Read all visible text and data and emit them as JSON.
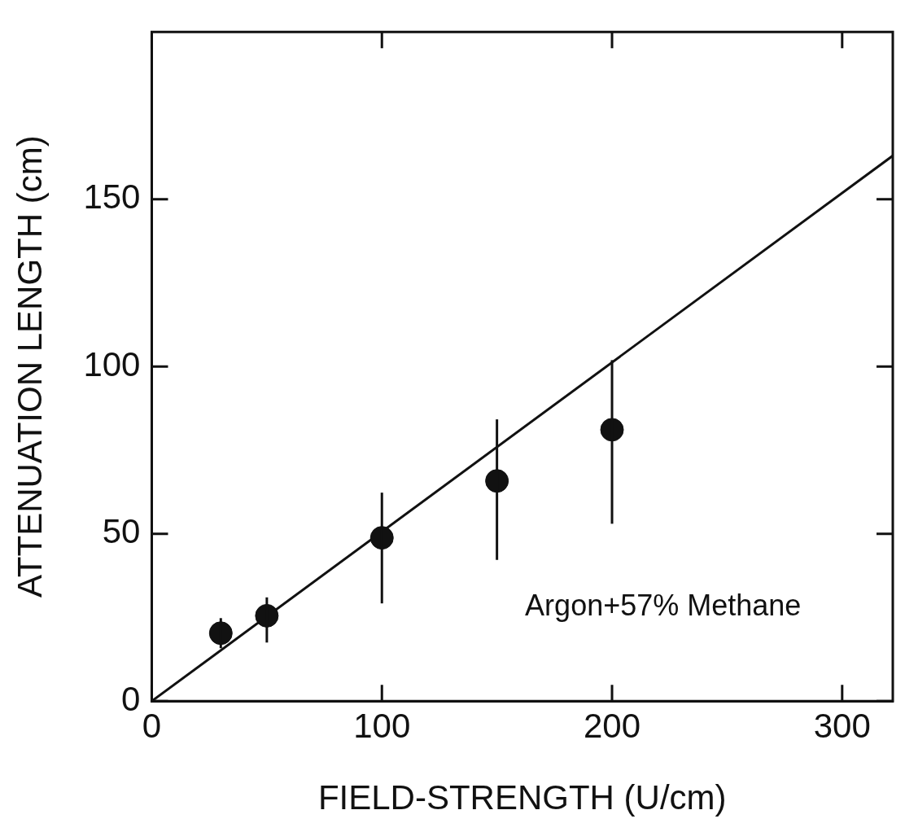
{
  "chart_data": {
    "type": "scatter",
    "xlabel": "FIELD-STRENGTH (U/cm)",
    "ylabel": "ATTENUATION LENGTH (cm)",
    "xlim": [
      0,
      322
    ],
    "ylim": [
      0,
      200
    ],
    "xticks": [
      0,
      100,
      200,
      300
    ],
    "yticks": [
      0,
      50,
      100,
      150
    ],
    "grid": false,
    "legend": false,
    "marker": "circle",
    "annotations": [
      "Argon+57% Methane"
    ],
    "series": [
      {
        "type": "scatter",
        "color": "#111111",
        "x": [
          30,
          50,
          100,
          150,
          200
        ],
        "values": [
          20.3,
          25.5,
          48.8,
          65.8,
          81.1
        ],
        "errors": [
          [
            15.8,
            24.8
          ],
          [
            17.5,
            31
          ],
          [
            29.2,
            62.3
          ],
          [
            42.2,
            84.2
          ],
          [
            53,
            101.9
          ]
        ]
      },
      {
        "type": "line",
        "color": "#111111",
        "line_style": "solid",
        "marker": "none",
        "x": [
          0,
          322
        ],
        "values": [
          0,
          163
        ]
      }
    ]
  }
}
